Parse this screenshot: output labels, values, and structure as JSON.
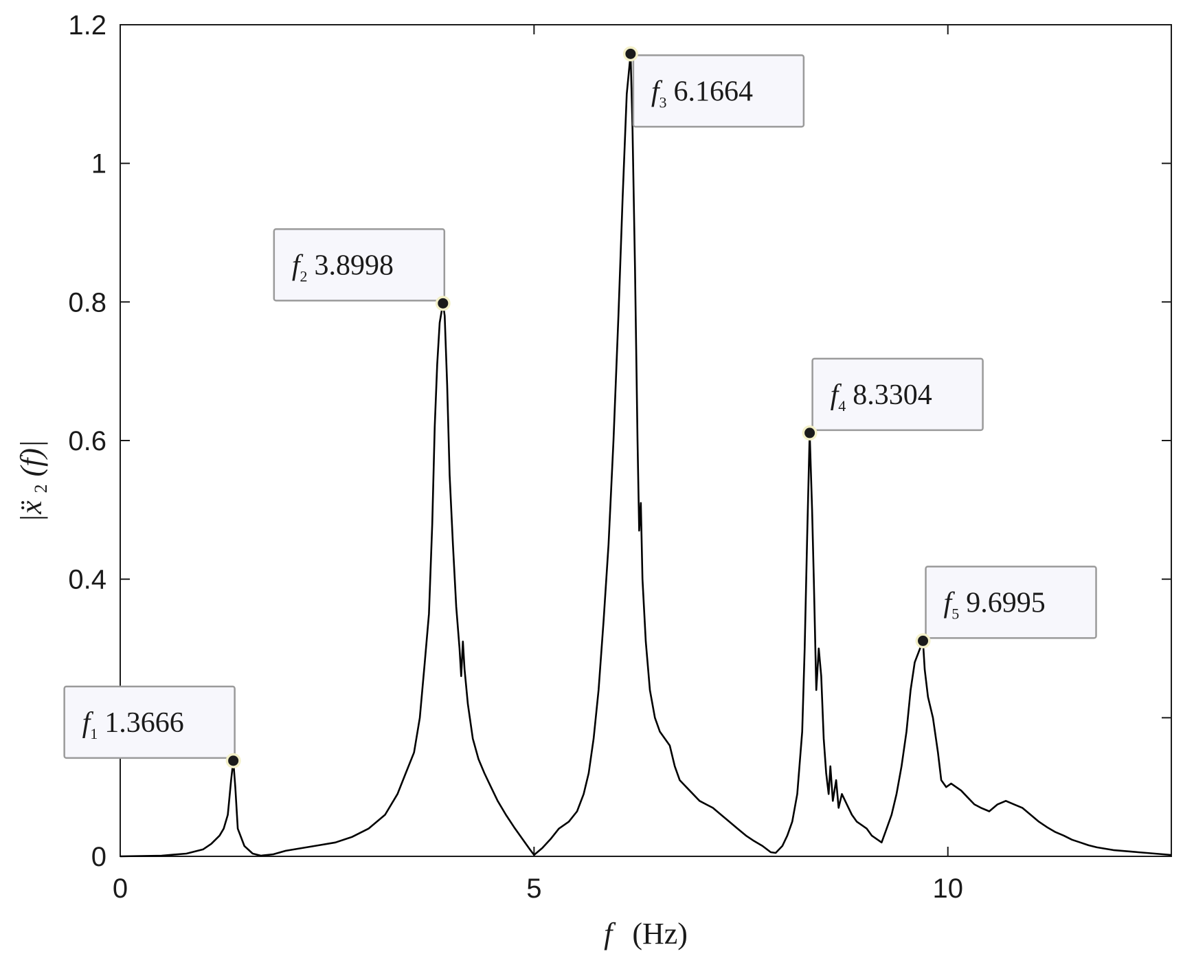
{
  "chart_data": {
    "type": "line",
    "xlabel_symbol": "f",
    "xlabel_unit": "(Hz)",
    "ylabel_prefix": "|ẍ",
    "ylabel_sub": "2",
    "ylabel_suffix": "(f)|",
    "xlim": [
      0,
      12.7
    ],
    "ylim": [
      0,
      1.2
    ],
    "xticks": [
      0,
      5,
      10
    ],
    "xtick_labels": [
      "0",
      "5",
      "10"
    ],
    "yticks": [
      0,
      0.2,
      0.4,
      0.6,
      0.8,
      1.0,
      1.2
    ],
    "ytick_labels": [
      "0",
      "",
      "0.4",
      "0.6",
      "0.8",
      "1",
      "1.2"
    ],
    "grid": false,
    "line_color": "#000000",
    "marker_color": "#1a1a1a",
    "marker_halo_color": "#f3f0c8",
    "annotation_border_color": "#9a9a9a",
    "annotation_fill_color": "#f7f7fc",
    "annotations": [
      {
        "symbol": "f",
        "sub": "1",
        "text": "1.3666",
        "x": 1.3666,
        "y": 0.138,
        "placement": "upper-left"
      },
      {
        "symbol": "f",
        "sub": "2",
        "text": "3.8998",
        "x": 3.8998,
        "y": 0.798,
        "placement": "upper-left"
      },
      {
        "symbol": "f",
        "sub": "3",
        "text": "6.1664",
        "x": 6.1664,
        "y": 1.158,
        "placement": "lower-right"
      },
      {
        "symbol": "f",
        "sub": "4",
        "text": "8.3304",
        "x": 8.3304,
        "y": 0.611,
        "placement": "upper-right"
      },
      {
        "symbol": "f",
        "sub": "5",
        "text": "9.6995",
        "x": 9.6995,
        "y": 0.311,
        "placement": "upper-right"
      }
    ],
    "series": [
      {
        "points": [
          [
            0.0,
            0.0
          ],
          [
            0.5,
            0.001
          ],
          [
            0.8,
            0.004
          ],
          [
            1.0,
            0.01
          ],
          [
            1.1,
            0.018
          ],
          [
            1.2,
            0.03
          ],
          [
            1.25,
            0.04
          ],
          [
            1.3,
            0.06
          ],
          [
            1.34,
            0.11
          ],
          [
            1.3666,
            0.138
          ],
          [
            1.39,
            0.1
          ],
          [
            1.42,
            0.04
          ],
          [
            1.5,
            0.015
          ],
          [
            1.6,
            0.004
          ],
          [
            1.7,
            0.001
          ],
          [
            1.85,
            0.003
          ],
          [
            2.0,
            0.008
          ],
          [
            2.2,
            0.012
          ],
          [
            2.4,
            0.016
          ],
          [
            2.6,
            0.02
          ],
          [
            2.8,
            0.028
          ],
          [
            3.0,
            0.04
          ],
          [
            3.2,
            0.06
          ],
          [
            3.35,
            0.09
          ],
          [
            3.45,
            0.12
          ],
          [
            3.55,
            0.15
          ],
          [
            3.62,
            0.2
          ],
          [
            3.68,
            0.28
          ],
          [
            3.73,
            0.35
          ],
          [
            3.77,
            0.48
          ],
          [
            3.8,
            0.62
          ],
          [
            3.83,
            0.71
          ],
          [
            3.86,
            0.77
          ],
          [
            3.8998,
            0.798
          ],
          [
            3.92,
            0.78
          ],
          [
            3.95,
            0.68
          ],
          [
            3.98,
            0.55
          ],
          [
            4.02,
            0.45
          ],
          [
            4.06,
            0.36
          ],
          [
            4.1,
            0.3
          ],
          [
            4.12,
            0.26
          ],
          [
            4.14,
            0.31
          ],
          [
            4.16,
            0.27
          ],
          [
            4.2,
            0.22
          ],
          [
            4.26,
            0.17
          ],
          [
            4.33,
            0.14
          ],
          [
            4.4,
            0.12
          ],
          [
            4.48,
            0.1
          ],
          [
            4.56,
            0.08
          ],
          [
            4.66,
            0.06
          ],
          [
            4.76,
            0.042
          ],
          [
            4.86,
            0.025
          ],
          [
            4.95,
            0.01
          ],
          [
            5.0,
            0.002
          ],
          [
            5.1,
            0.012
          ],
          [
            5.2,
            0.025
          ],
          [
            5.3,
            0.04
          ],
          [
            5.42,
            0.05
          ],
          [
            5.52,
            0.065
          ],
          [
            5.6,
            0.09
          ],
          [
            5.66,
            0.12
          ],
          [
            5.72,
            0.17
          ],
          [
            5.78,
            0.24
          ],
          [
            5.84,
            0.34
          ],
          [
            5.9,
            0.45
          ],
          [
            5.96,
            0.6
          ],
          [
            6.02,
            0.78
          ],
          [
            6.07,
            0.95
          ],
          [
            6.12,
            1.1
          ],
          [
            6.1664,
            1.158
          ],
          [
            6.19,
            1.05
          ],
          [
            6.22,
            0.85
          ],
          [
            6.25,
            0.6
          ],
          [
            6.27,
            0.47
          ],
          [
            6.29,
            0.51
          ],
          [
            6.31,
            0.4
          ],
          [
            6.35,
            0.31
          ],
          [
            6.4,
            0.24
          ],
          [
            6.46,
            0.2
          ],
          [
            6.52,
            0.18
          ],
          [
            6.58,
            0.17
          ],
          [
            6.64,
            0.16
          ],
          [
            6.7,
            0.13
          ],
          [
            6.76,
            0.11
          ],
          [
            6.84,
            0.1
          ],
          [
            6.92,
            0.09
          ],
          [
            7.0,
            0.08
          ],
          [
            7.08,
            0.075
          ],
          [
            7.16,
            0.07
          ],
          [
            7.26,
            0.06
          ],
          [
            7.36,
            0.05
          ],
          [
            7.46,
            0.04
          ],
          [
            7.56,
            0.03
          ],
          [
            7.66,
            0.022
          ],
          [
            7.76,
            0.015
          ],
          [
            7.86,
            0.006
          ],
          [
            7.92,
            0.005
          ],
          [
            8.0,
            0.015
          ],
          [
            8.06,
            0.03
          ],
          [
            8.12,
            0.05
          ],
          [
            8.18,
            0.09
          ],
          [
            8.24,
            0.18
          ],
          [
            8.27,
            0.3
          ],
          [
            8.3,
            0.46
          ],
          [
            8.3304,
            0.611
          ],
          [
            8.36,
            0.5
          ],
          [
            8.38,
            0.4
          ],
          [
            8.41,
            0.24
          ],
          [
            8.44,
            0.3
          ],
          [
            8.47,
            0.26
          ],
          [
            8.5,
            0.17
          ],
          [
            8.53,
            0.12
          ],
          [
            8.56,
            0.09
          ],
          [
            8.58,
            0.13
          ],
          [
            8.61,
            0.08
          ],
          [
            8.65,
            0.11
          ],
          [
            8.68,
            0.07
          ],
          [
            8.72,
            0.09
          ],
          [
            8.78,
            0.075
          ],
          [
            8.84,
            0.06
          ],
          [
            8.9,
            0.05
          ],
          [
            8.96,
            0.045
          ],
          [
            9.02,
            0.04
          ],
          [
            9.08,
            0.03
          ],
          [
            9.14,
            0.025
          ],
          [
            9.2,
            0.02
          ],
          [
            9.26,
            0.04
          ],
          [
            9.32,
            0.06
          ],
          [
            9.38,
            0.09
          ],
          [
            9.44,
            0.13
          ],
          [
            9.5,
            0.18
          ],
          [
            9.55,
            0.24
          ],
          [
            9.6,
            0.28
          ],
          [
            9.6995,
            0.311
          ],
          [
            9.72,
            0.27
          ],
          [
            9.76,
            0.23
          ],
          [
            9.82,
            0.2
          ],
          [
            9.88,
            0.15
          ],
          [
            9.92,
            0.11
          ],
          [
            9.98,
            0.1
          ],
          [
            10.04,
            0.105
          ],
          [
            10.1,
            0.1
          ],
          [
            10.16,
            0.095
          ],
          [
            10.24,
            0.085
          ],
          [
            10.32,
            0.075
          ],
          [
            10.4,
            0.07
          ],
          [
            10.5,
            0.065
          ],
          [
            10.6,
            0.075
          ],
          [
            10.7,
            0.08
          ],
          [
            10.8,
            0.075
          ],
          [
            10.9,
            0.07
          ],
          [
            11.0,
            0.06
          ],
          [
            11.1,
            0.05
          ],
          [
            11.2,
            0.042
          ],
          [
            11.3,
            0.035
          ],
          [
            11.4,
            0.03
          ],
          [
            11.5,
            0.024
          ],
          [
            11.6,
            0.02
          ],
          [
            11.7,
            0.016
          ],
          [
            11.8,
            0.013
          ],
          [
            11.9,
            0.011
          ],
          [
            12.0,
            0.009
          ],
          [
            12.1,
            0.008
          ],
          [
            12.2,
            0.007
          ],
          [
            12.3,
            0.006
          ],
          [
            12.4,
            0.005
          ],
          [
            12.5,
            0.004
          ],
          [
            12.6,
            0.003
          ],
          [
            12.7,
            0.002
          ]
        ]
      }
    ]
  }
}
